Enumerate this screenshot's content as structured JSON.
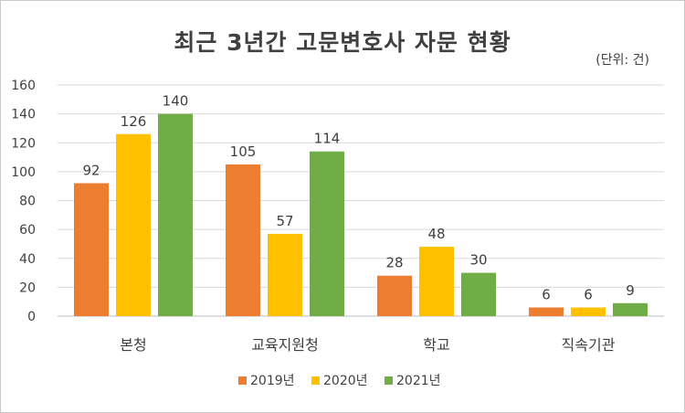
{
  "chart_data": {
    "type": "bar",
    "title": "최근 3년간 고문변호사 자문 현황",
    "unit_note": "(단위:  건)",
    "categories": [
      "본청",
      "교육지원청",
      "학교",
      "직속기관"
    ],
    "series": [
      {
        "name": "2019년",
        "values": [
          92,
          105,
          28,
          6
        ],
        "color": "#ED7D31"
      },
      {
        "name": "2020년",
        "values": [
          126,
          57,
          48,
          6
        ],
        "color": "#FFC000"
      },
      {
        "name": "2021년",
        "values": [
          140,
          114,
          30,
          9
        ],
        "color": "#70AD47"
      }
    ],
    "ylim": [
      0,
      160
    ],
    "yticks": [
      0,
      20,
      40,
      60,
      80,
      100,
      120,
      140,
      160
    ],
    "grid": true,
    "legend_position": "bottom",
    "data_labels": true
  }
}
